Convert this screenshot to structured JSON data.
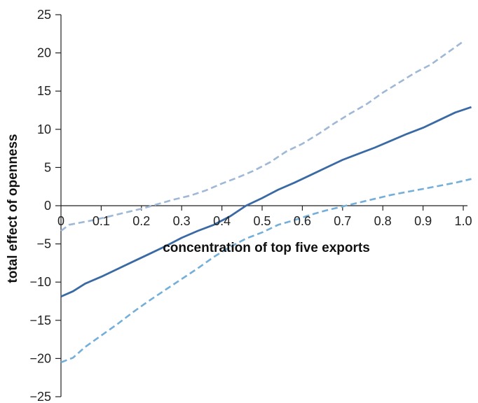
{
  "chart_data": {
    "type": "line",
    "title": "",
    "xlabel": "concentration of top five exports",
    "ylabel": "total effect of openness",
    "xlim": [
      0,
      1.0
    ],
    "ylim": [
      -25,
      25
    ],
    "x_ticks": [
      0,
      0.1,
      0.2,
      0.3,
      0.4,
      0.5,
      0.6,
      0.7,
      0.8,
      0.9,
      1.0
    ],
    "x_tick_labels": [
      "0",
      "0.1",
      "0.2",
      "0.3",
      "0.4",
      "0.5",
      "0.6",
      "0.7",
      "0.8",
      "0.9",
      "1.0"
    ],
    "y_ticks": [
      25,
      20,
      15,
      10,
      5,
      0,
      -5,
      -10,
      -15,
      -20,
      -25
    ],
    "y_tick_labels": [
      "25",
      "20",
      "15",
      "10",
      "5",
      "0",
      "−5",
      "−10",
      "−15",
      "−20",
      "−25"
    ],
    "grid": false,
    "legend": "none",
    "colors": {
      "estimate": "#3a6aa4",
      "upper_bound": "#9fb8d6",
      "lower_bound": "#74afd9",
      "axis": "#222222"
    },
    "series": [
      {
        "role": "upper_bound",
        "style": "dashed",
        "x": [
          0,
          0.02,
          0.05,
          0.08,
          0.12,
          0.16,
          0.2,
          0.24,
          0.28,
          0.32,
          0.36,
          0.4,
          0.44,
          0.48,
          0.52,
          0.56,
          0.6,
          0.64,
          0.68,
          0.72,
          0.76,
          0.8,
          0.84,
          0.88,
          0.92,
          0.96,
          1.0
        ],
        "y": [
          -3.3,
          -2.5,
          -2.2,
          -1.9,
          -1.4,
          -0.9,
          -0.4,
          0.2,
          0.8,
          1.3,
          2.0,
          2.9,
          3.7,
          4.6,
          5.7,
          7.1,
          8.1,
          9.4,
          10.8,
          12.1,
          13.3,
          14.8,
          16.1,
          17.4,
          18.5,
          20.0,
          21.5
        ]
      },
      {
        "role": "estimate",
        "style": "solid",
        "x": [
          0,
          0.03,
          0.06,
          0.1,
          0.14,
          0.18,
          0.22,
          0.26,
          0.3,
          0.34,
          0.38,
          0.42,
          0.46,
          0.5,
          0.54,
          0.58,
          0.62,
          0.66,
          0.7,
          0.74,
          0.78,
          0.82,
          0.86,
          0.9,
          0.94,
          0.98,
          1.02
        ],
        "y": [
          -11.9,
          -11.2,
          -10.2,
          -9.3,
          -8.3,
          -7.3,
          -6.3,
          -5.3,
          -4.2,
          -3.3,
          -2.5,
          -1.4,
          0.0,
          1.0,
          2.1,
          3.0,
          4.0,
          5.0,
          6.0,
          6.8,
          7.6,
          8.5,
          9.4,
          10.2,
          11.2,
          12.2,
          12.9
        ]
      },
      {
        "role": "lower_bound",
        "style": "dashed",
        "x": [
          0,
          0.03,
          0.06,
          0.1,
          0.14,
          0.18,
          0.22,
          0.26,
          0.3,
          0.34,
          0.38,
          0.42,
          0.46,
          0.5,
          0.54,
          0.58,
          0.62,
          0.66,
          0.7,
          0.74,
          0.78,
          0.82,
          0.86,
          0.9,
          0.94,
          0.98,
          1.02
        ],
        "y": [
          -20.5,
          -19.9,
          -18.5,
          -17.0,
          -15.5,
          -13.9,
          -12.4,
          -11.0,
          -9.6,
          -8.2,
          -6.7,
          -5.4,
          -4.3,
          -3.5,
          -2.5,
          -1.9,
          -1.2,
          -0.6,
          -0.1,
          0.4,
          0.9,
          1.4,
          1.8,
          2.2,
          2.6,
          3.0,
          3.5
        ]
      }
    ]
  }
}
